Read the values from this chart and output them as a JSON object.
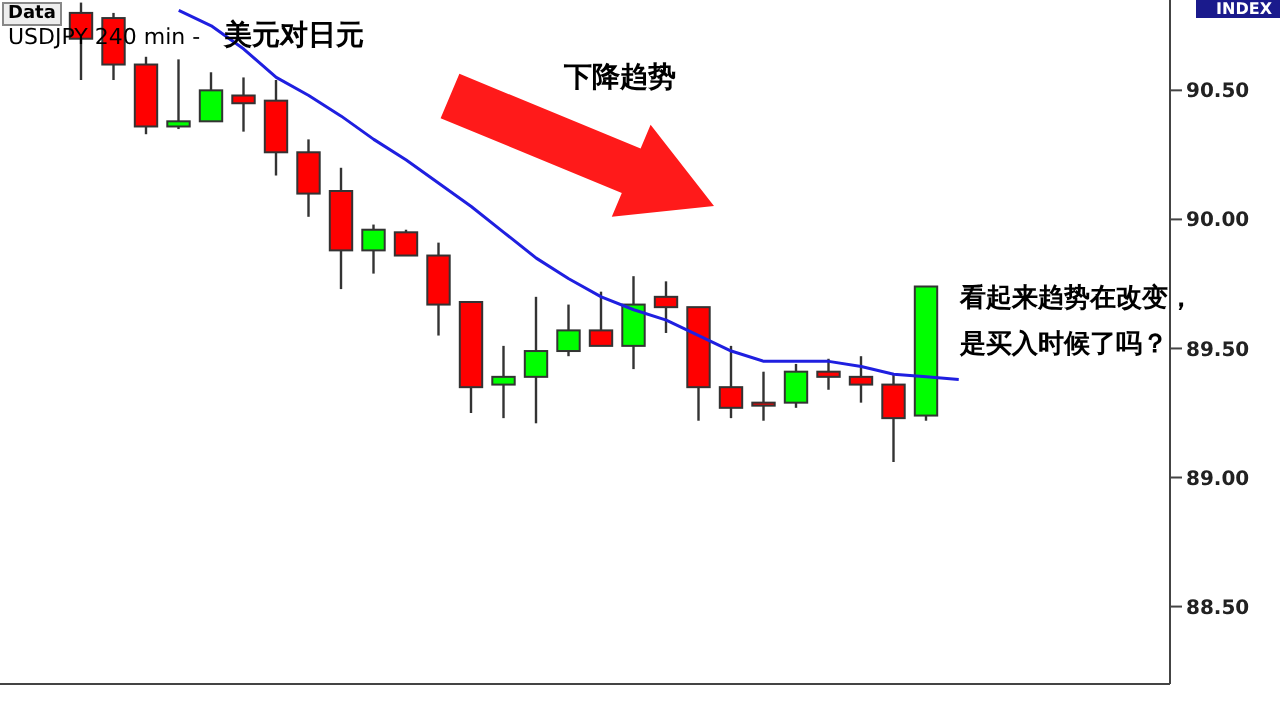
{
  "chart_data": {
    "type": "candlestick",
    "categories": [
      null,
      null,
      null,
      null,
      null,
      null,
      null,
      null,
      null,
      null,
      null,
      null,
      null,
      null,
      null,
      null,
      null,
      null,
      null,
      null,
      null,
      null,
      null,
      null,
      null,
      null,
      null,
      null,
      null,
      null,
      null,
      null,
      null,
      null,
      null,
      null
    ],
    "ohlc": [
      null,
      null,
      [
        90.8,
        90.84,
        90.54,
        90.7
      ],
      [
        90.78,
        90.8,
        90.54,
        90.6
      ],
      [
        90.6,
        90.63,
        90.33,
        90.36
      ],
      [
        90.36,
        90.62,
        90.35,
        90.38
      ],
      [
        90.38,
        90.57,
        90.38,
        90.5
      ],
      [
        90.48,
        90.55,
        90.34,
        90.45
      ],
      [
        90.46,
        90.54,
        90.17,
        90.26
      ],
      [
        90.26,
        90.31,
        90.01,
        90.1
      ],
      [
        90.11,
        90.2,
        89.73,
        89.88
      ],
      [
        89.88,
        89.98,
        89.79,
        89.96
      ],
      [
        89.95,
        89.96,
        89.86,
        89.86
      ],
      [
        89.86,
        89.91,
        89.55,
        89.67
      ],
      [
        89.68,
        89.68,
        89.25,
        89.35
      ],
      [
        89.36,
        89.51,
        89.23,
        89.39
      ],
      [
        89.39,
        89.7,
        89.21,
        89.49
      ],
      [
        89.49,
        89.67,
        89.47,
        89.57
      ],
      [
        89.57,
        89.72,
        89.51,
        89.51
      ],
      [
        89.51,
        89.78,
        89.42,
        89.67
      ],
      [
        89.7,
        89.76,
        89.56,
        89.66
      ],
      [
        89.66,
        89.66,
        89.22,
        89.35
      ],
      [
        89.35,
        89.51,
        89.23,
        89.27
      ],
      [
        89.29,
        89.41,
        89.22,
        89.28
      ],
      [
        89.29,
        89.44,
        89.27,
        89.41
      ],
      [
        89.41,
        89.46,
        89.34,
        89.39
      ],
      [
        89.39,
        89.47,
        89.29,
        89.36
      ],
      [
        89.36,
        89.4,
        89.06,
        89.23
      ],
      [
        89.24,
        89.74,
        89.22,
        89.74
      ],
      null,
      null,
      null,
      null,
      null,
      null,
      null
    ],
    "colors": [
      null,
      null,
      "#ff0000",
      "#ff0000",
      "#ff0000",
      "#00ff00",
      "#00ff00",
      "#ff0000",
      "#ff0000",
      "#ff0000",
      "#ff0000",
      "#00ff00",
      "#ff0000",
      "#ff0000",
      "#ff0000",
      "#00ff00",
      "#00ff00",
      "#00ff00",
      "#ff0000",
      "#00ff00",
      "#ff0000",
      "#ff0000",
      "#ff0000",
      "#ff0000",
      "#00ff00",
      "#ff0000",
      "#ff0000",
      "#ff0000",
      "#00ff00",
      null,
      null,
      null,
      null,
      null,
      null,
      null
    ],
    "series": [
      {
        "type": "line",
        "color": "#1f1fe0",
        "values": [
          null,
          null,
          null,
          null,
          null,
          90.81,
          90.75,
          90.66,
          90.55,
          90.48,
          90.4,
          90.31,
          90.23,
          90.14,
          90.05,
          89.95,
          89.85,
          89.77,
          89.7,
          89.65,
          89.61,
          89.55,
          89.49,
          89.45,
          89.45,
          89.45,
          89.43,
          89.4,
          89.39,
          89.38,
          null,
          null,
          null,
          null,
          null,
          null
        ]
      }
    ],
    "ylim": [
      88.2,
      90.85
    ],
    "yticks": [
      {
        "value": 88.5,
        "label": "88.50"
      },
      {
        "value": 89,
        "label": "89.00"
      },
      {
        "value": 89.5,
        "label": "89.50"
      },
      {
        "value": 90,
        "label": "90.00"
      },
      {
        "value": 90.5,
        "label": "90.50"
      }
    ],
    "tick_labels": "y",
    "grid": false,
    "legend": false,
    "annotations": [
      "Data",
      "USDJPY  240 min -",
      "美元对日元",
      "下降趋势",
      "看起来趋势在改变，",
      "是买入时候了吗？",
      "INDEX"
    ]
  }
}
